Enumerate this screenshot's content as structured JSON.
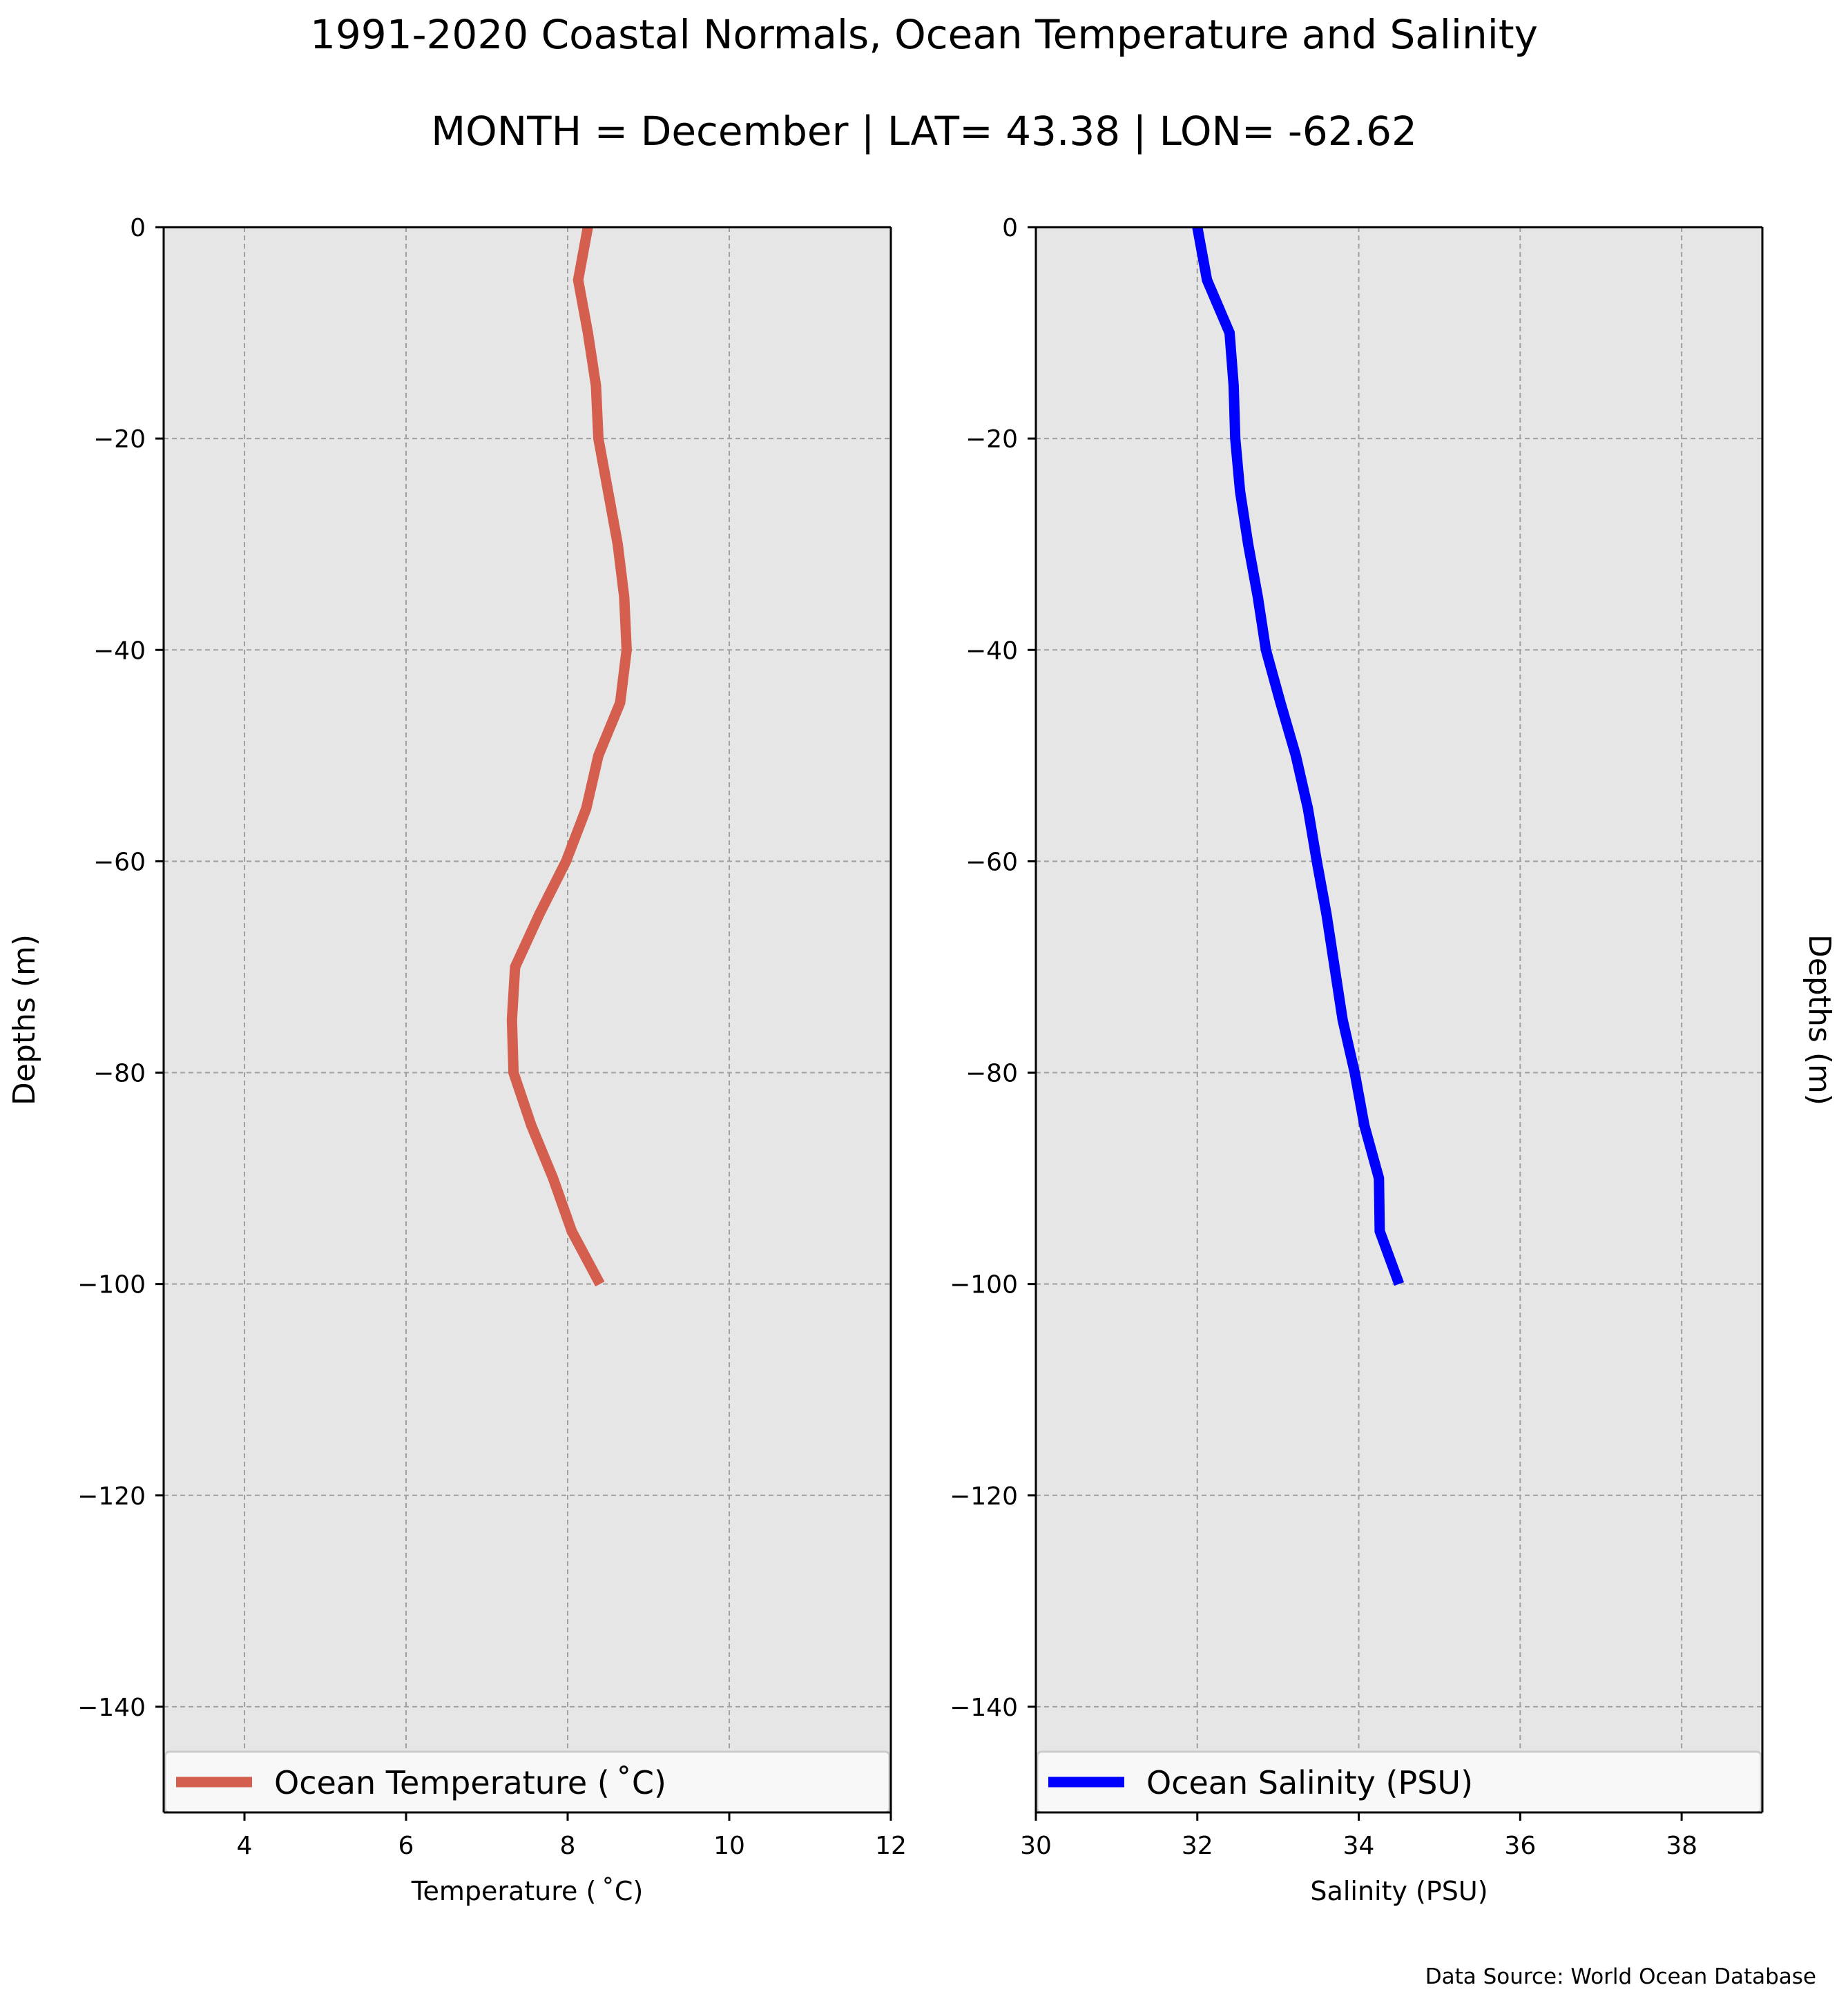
{
  "figure": {
    "title": "1991-2020 Coastal Normals, Ocean Temperature and Salinity",
    "subtitle": "MONTH = December | LAT= 43.38 | LON= -62.62",
    "source": "Data Source: World Ocean Database"
  },
  "colors": {
    "plot_background": "#e6e6e6",
    "grid": "#a0a0a0",
    "temperature_line": "#d45f4f",
    "salinity_line": "#0000ff",
    "legend_background": "#f8f8f8"
  },
  "chart_data": [
    {
      "type": "line",
      "xlabel": "Temperature ($^\\circ$C)",
      "xlabel_display": "Temperature ( ˚C)",
      "ylabel": "Depths (m)",
      "xlim": [
        3,
        12
      ],
      "ylim": [
        -150,
        0
      ],
      "xticks": [
        4,
        6,
        8,
        10,
        12
      ],
      "xtick_labels": [
        "4",
        "6",
        "8",
        "10",
        "12"
      ],
      "yticks": [
        0,
        -20,
        -40,
        -60,
        -80,
        -100,
        -120,
        -140
      ],
      "ytick_labels": [
        "0",
        "−20",
        "−40",
        "−60",
        "−80",
        "−100",
        "−120",
        "−140"
      ],
      "grid": true,
      "legend_position": "bottom",
      "series": [
        {
          "name": "Ocean Temperature ( ˚C)",
          "x": [
            8.25,
            8.13,
            8.25,
            8.35,
            8.38,
            8.5,
            8.62,
            8.7,
            8.73,
            8.65,
            8.38,
            8.23,
            7.98,
            7.65,
            7.35,
            7.31,
            7.33,
            7.55,
            7.82,
            8.05,
            8.4
          ],
          "y": [
            0,
            -5,
            -10,
            -15,
            -20,
            -25,
            -30,
            -35,
            -40,
            -45,
            -50,
            -55,
            -60,
            -65,
            -70,
            -75,
            -80,
            -85,
            -90,
            -95,
            -100
          ]
        }
      ]
    },
    {
      "type": "line",
      "xlabel": "Salinity (PSU)",
      "ylabel": "Depths (m)",
      "xlim": [
        30,
        39
      ],
      "ylim": [
        -150,
        0
      ],
      "xticks": [
        30,
        32,
        34,
        36,
        38
      ],
      "xtick_labels": [
        "30",
        "32",
        "34",
        "36",
        "38"
      ],
      "yticks": [
        0,
        -20,
        -40,
        -60,
        -80,
        -100,
        -120,
        -140
      ],
      "ytick_labels": [
        "0",
        "−20",
        "−40",
        "−60",
        "−80",
        "−100",
        "−120",
        "−140"
      ],
      "grid": true,
      "legend_position": "bottom",
      "series": [
        {
          "name": "Ocean Salinity (PSU)",
          "x": [
            32.0,
            32.12,
            32.4,
            32.45,
            32.47,
            32.53,
            32.63,
            32.75,
            32.85,
            33.03,
            33.22,
            33.37,
            33.48,
            33.6,
            33.7,
            33.8,
            33.95,
            34.07,
            34.25,
            34.26,
            34.5
          ],
          "y": [
            0,
            -5,
            -10,
            -15,
            -20,
            -25,
            -30,
            -35,
            -40,
            -45,
            -50,
            -55,
            -60,
            -65,
            -70,
            -75,
            -80,
            -85,
            -90,
            -95,
            -100
          ]
        }
      ]
    }
  ]
}
